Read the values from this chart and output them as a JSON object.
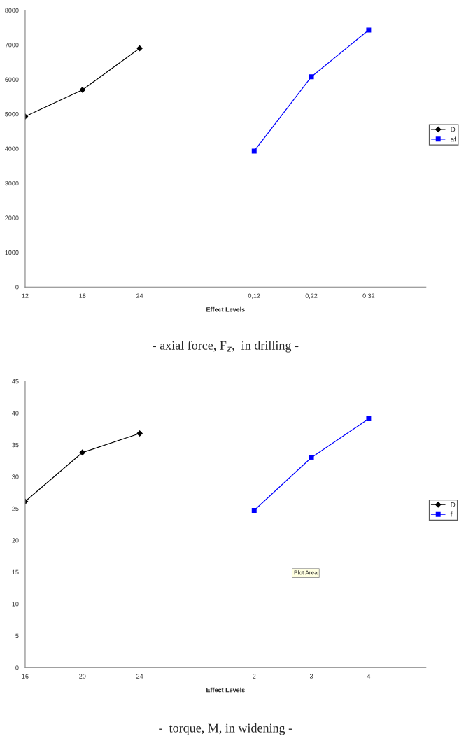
{
  "chart_data": [
    {
      "type": "line",
      "title": "- axial force, F$_{z}$,  in drilling -",
      "xlabel": "Effect Levels",
      "categories": [
        "12",
        "18",
        "24",
        null,
        "0,12",
        "0,22",
        "0,32",
        null
      ],
      "series": [
        {
          "name": "D",
          "color": "#000000",
          "marker": "diamond",
          "values": [
            4930,
            5700,
            6900,
            null,
            null,
            null,
            null,
            null
          ]
        },
        {
          "name": "af",
          "color": "#0000ff",
          "marker": "square",
          "values": [
            null,
            null,
            null,
            null,
            3930,
            6080,
            7430,
            null
          ]
        }
      ],
      "ylim": [
        0,
        8000
      ],
      "yticks": [
        0,
        1000,
        2000,
        3000,
        4000,
        5000,
        6000,
        7000,
        8000
      ],
      "grid": false,
      "legend": "right"
    },
    {
      "type": "line",
      "title": "-  torque, M, in widening -",
      "xlabel": "Effect Levels",
      "categories": [
        "16",
        "20",
        "24",
        null,
        "2",
        "3",
        "4",
        null
      ],
      "series": [
        {
          "name": "D",
          "color": "#000000",
          "marker": "diamond",
          "values": [
            26.1,
            33.8,
            36.8,
            null,
            null,
            null,
            null,
            null
          ]
        },
        {
          "name": "f",
          "color": "#0000ff",
          "marker": "square",
          "values": [
            null,
            null,
            null,
            null,
            24.7,
            33.0,
            39.1,
            null
          ]
        }
      ],
      "ylim": [
        0,
        45
      ],
      "yticks": [
        0,
        5,
        10,
        15,
        20,
        25,
        30,
        35,
        40,
        45
      ],
      "grid": false,
      "legend": "right",
      "annotations": [
        "Plot Area"
      ]
    }
  ]
}
